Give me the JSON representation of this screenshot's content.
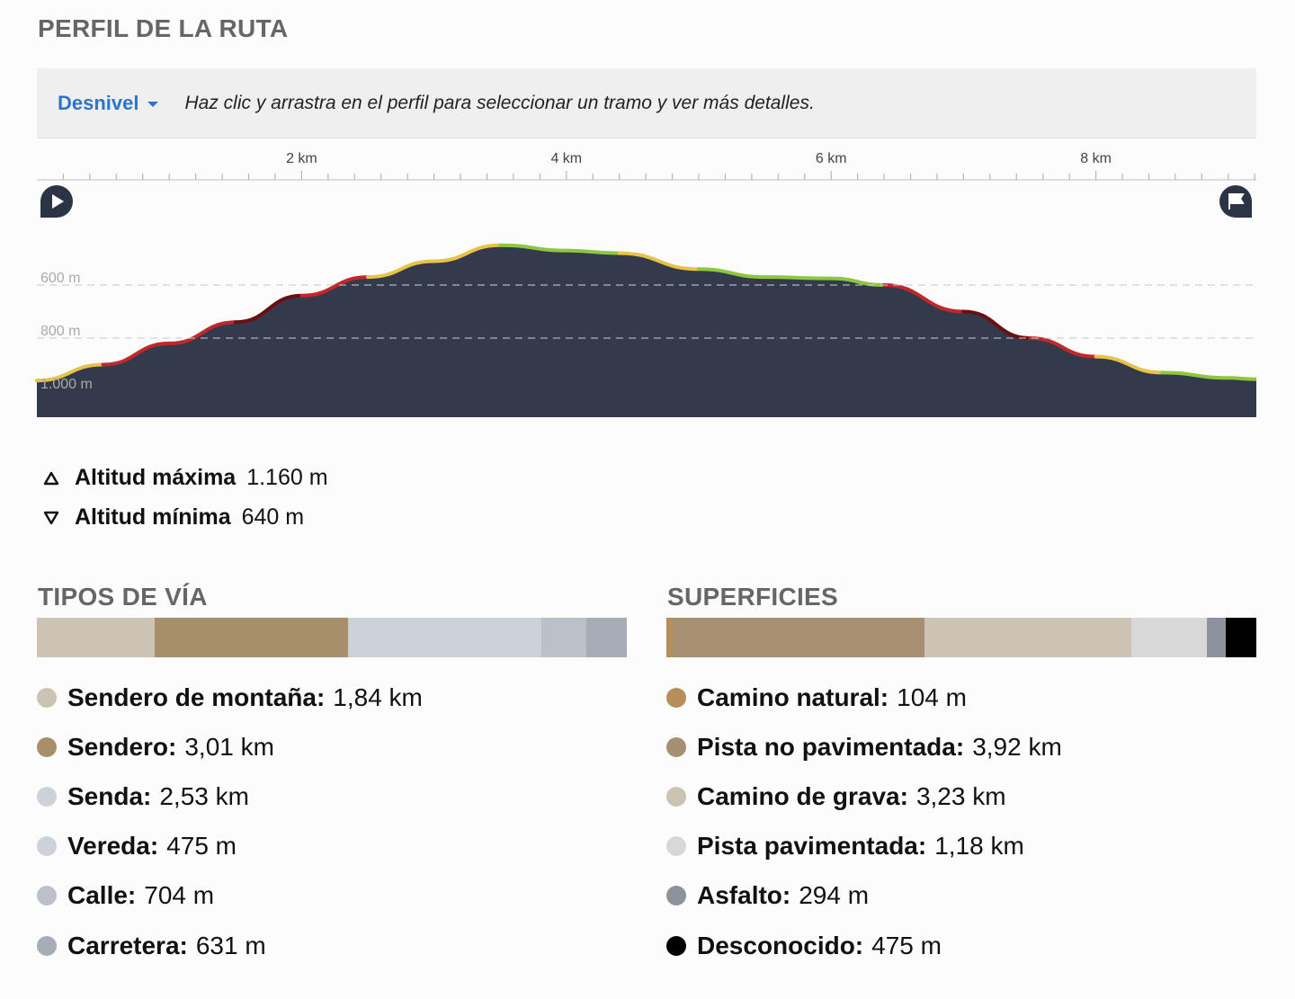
{
  "profile": {
    "title": "PERFIL DE LA RUTA",
    "metric": "Desnivel",
    "hint": "Haz clic y arrastra en el perfil para seleccionar un tramo y ver más detalles.",
    "x_ticks": [
      "2 km",
      "4 km",
      "6 km",
      "8 km"
    ],
    "y_ticks": [
      "1.000 m",
      "800 m",
      "600 m"
    ],
    "fill_color": "#323a4b",
    "grade_colors": {
      "flat": "#8ec63f",
      "moderate": "#e8c34a",
      "steep": "#c1272d",
      "very_steep": "#6b0f12"
    }
  },
  "chart_data": {
    "type": "area",
    "title": "",
    "xlabel": "",
    "ylabel": "",
    "xlim": [
      0,
      9.2
    ],
    "ylim": [
      520,
      1180
    ],
    "x_ticks": [
      2,
      4,
      6,
      8
    ],
    "y_ticks": [
      600,
      800,
      1000
    ],
    "grid": "horizontal dashed",
    "series": [
      {
        "x": [
          0,
          0.5,
          1,
          1.5,
          2,
          2.5,
          3,
          3.5,
          4,
          4.4,
          5,
          5.5,
          6,
          6.4,
          7,
          7.5,
          8,
          8.5,
          9,
          9.2
        ],
        "y": [
          640,
          700,
          780,
          860,
          960,
          1030,
          1090,
          1150,
          1130,
          1120,
          1060,
          1030,
          1025,
          1000,
          900,
          800,
          730,
          670,
          650,
          645
        ]
      }
    ]
  },
  "stats": {
    "max_label": "Altitud máxima",
    "max_value": "1.160 m",
    "min_label": "Altitud mínima",
    "min_value": "640 m"
  },
  "way_types": {
    "title": "TIPOS DE VÍA",
    "items": [
      {
        "label": "Sendero de montaña:",
        "value": "1,84 km",
        "color": "#ccc3b4",
        "share": 0.201
      },
      {
        "label": "Sendero:",
        "value": "3,01 km",
        "color": "#a88f6b",
        "share": 0.328
      },
      {
        "label": "Senda:",
        "value": "2,53 km",
        "color": "#cdd2d9",
        "share": 0.276
      },
      {
        "label": "Vereda:",
        "value": "475 m",
        "color": "#cdd2d9",
        "share": 0.052
      },
      {
        "label": "Calle:",
        "value": "704 m",
        "color": "#bcc1c8",
        "share": 0.077
      },
      {
        "label": "Carretera:",
        "value": "631 m",
        "color": "#a7adb6",
        "share": 0.069
      }
    ]
  },
  "surfaces": {
    "title": "SUPERFICIES",
    "items": [
      {
        "label": "Camino natural:",
        "value": "104 m",
        "color": "#b58e5a",
        "share": 0.011
      },
      {
        "label": "Pista no pavimentada:",
        "value": "3,92 km",
        "color": "#a79072",
        "share": 0.428
      },
      {
        "label": "Camino de grava:",
        "value": "3,23 km",
        "color": "#ccc3b4",
        "share": 0.352
      },
      {
        "label": "Pista pavimentada:",
        "value": "1,18 km",
        "color": "#d8d8d8",
        "share": 0.129
      },
      {
        "label": "Asfalto:",
        "value": "294 m",
        "color": "#8c939c",
        "share": 0.032
      },
      {
        "label": "Desconocido:",
        "value": "475 m",
        "color": "#000000",
        "share": 0.052
      }
    ]
  }
}
